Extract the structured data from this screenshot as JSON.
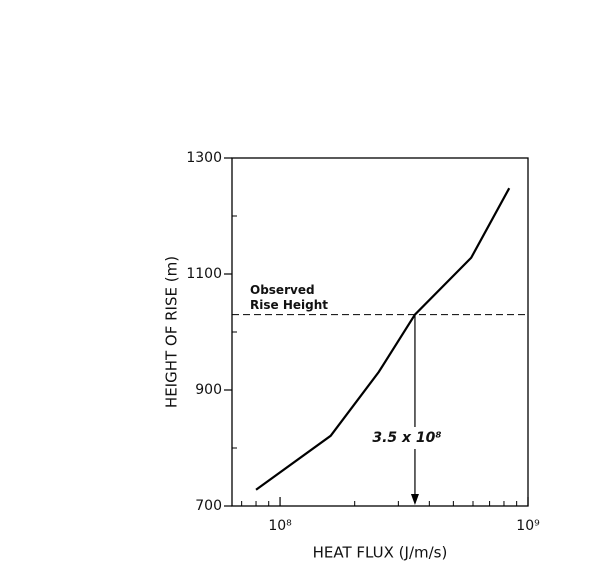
{
  "chart_data": {
    "type": "line",
    "x_label": "HEAT FLUX (J/m/s)",
    "y_label": "HEIGHT OF RISE (m)",
    "log_x": true,
    "x": [
      80000000,
      160000000,
      250000000,
      350000000,
      590000000,
      840000000
    ],
    "series": [
      {
        "color": "#000000",
        "values": [
          728,
          821,
          931,
          1030,
          1128,
          1248
        ]
      }
    ],
    "xlim": [
      64000000,
      1000000000
    ],
    "ylim": [
      700,
      1300
    ],
    "xticks": [
      {
        "value": 100000000,
        "label": "10⁸"
      },
      {
        "value": 1000000000,
        "label": "10⁹"
      }
    ],
    "xminor": [
      70000000,
      80000000,
      90000000,
      200000000,
      300000000,
      400000000,
      500000000,
      600000000,
      700000000,
      800000000,
      900000000
    ],
    "yticks": [
      700,
      900,
      1100,
      1300
    ],
    "yminor": [
      800,
      1000,
      1200
    ],
    "observed": {
      "value": 1030,
      "lines": [
        "Observed",
        "Rise Height"
      ]
    },
    "marker": {
      "value": 350000000,
      "label": "3.5 x 10⁸"
    }
  }
}
